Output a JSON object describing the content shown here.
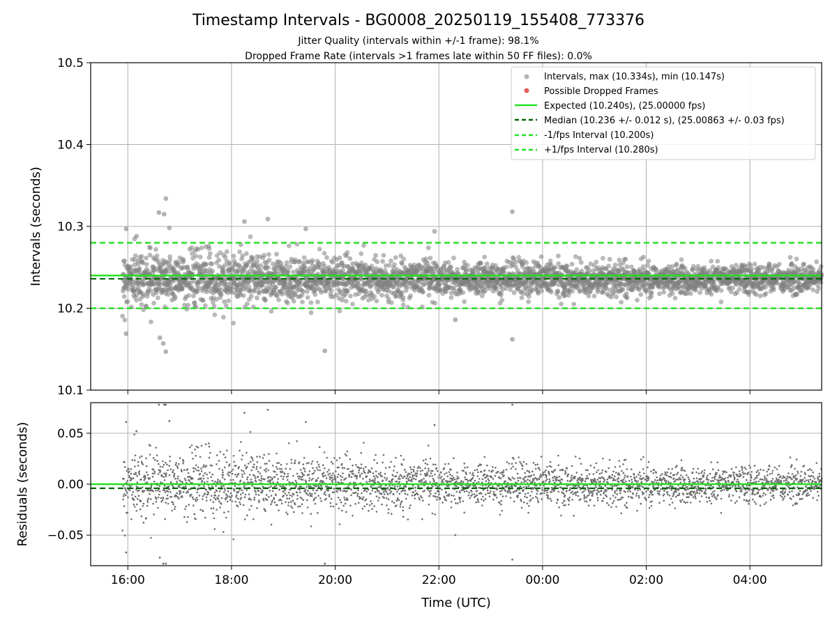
{
  "figure": {
    "title": "Timestamp Intervals - BG0008_20250119_155408_773376",
    "subtitle_1": "Jitter Quality (intervals within +/-1 frame): 98.1%",
    "subtitle_2": "Dropped Frame Rate (intervals >1 frames late within 50 FF files): 0.0%"
  },
  "colors": {
    "points": "#808080",
    "dropped": "#e8605a",
    "expected": "#22e022",
    "median": "#006400",
    "interval": "#22e022",
    "grid": "#b0b0b0"
  },
  "chart_data": [
    {
      "type": "scatter",
      "ylabel": "Intervals (seconds)",
      "xlim": [
        "15:17",
        "05:23"
      ],
      "ylim": [
        10.1,
        10.5
      ],
      "x_ticks": [
        "16:00",
        "18:00",
        "20:00",
        "22:00",
        "00:00",
        "02:00",
        "04:00"
      ],
      "y_ticks": [
        "10.1",
        "10.2",
        "10.3",
        "10.4",
        "10.5"
      ],
      "grid": true,
      "legend_position": "top-right",
      "legend": [
        "Intervals, max (10.334s), min (10.147s)",
        "Possible Dropped Frames",
        "Expected (10.240s), (25.00000 fps)",
        "Median (10.236 +/- 0.012 s), (25.00863 +/- 0.03 fps)",
        "-1/fps Interval (10.200s)",
        "+1/fps Interval (10.280s)"
      ],
      "expected": 10.24,
      "median": 10.236,
      "median_std": 0.012,
      "lower_interval": 10.2,
      "upper_interval": 10.28,
      "max": 10.334,
      "min": 10.147,
      "x_range": [
        "15:54",
        "05:23"
      ],
      "outliers": [
        {
          "x": "15:58",
          "y": 10.297
        },
        {
          "x": "15:58",
          "y": 10.169
        },
        {
          "x": "16:10",
          "y": 10.288
        },
        {
          "x": "16:36",
          "y": 10.317
        },
        {
          "x": "16:44",
          "y": 10.334
        },
        {
          "x": "16:42",
          "y": 10.315
        },
        {
          "x": "16:48",
          "y": 10.298
        },
        {
          "x": "16:37",
          "y": 10.164
        },
        {
          "x": "16:41",
          "y": 10.157
        },
        {
          "x": "16:44",
          "y": 10.147
        },
        {
          "x": "18:15",
          "y": 10.306
        },
        {
          "x": "18:42",
          "y": 10.309
        },
        {
          "x": "19:48",
          "y": 10.148
        },
        {
          "x": "19:26",
          "y": 10.297
        },
        {
          "x": "23:25",
          "y": 10.318
        },
        {
          "x": "23:25",
          "y": 10.162
        },
        {
          "x": "21:55",
          "y": 10.294
        },
        {
          "x": "22:19",
          "y": 10.186
        }
      ]
    },
    {
      "type": "scatter",
      "ylabel": "Residuals (seconds)",
      "xlabel": "Time (UTC)",
      "xlim": [
        "15:17",
        "05:23"
      ],
      "ylim": [
        -0.08,
        0.08
      ],
      "x_ticks": [
        "16:00",
        "18:00",
        "20:00",
        "22:00",
        "00:00",
        "02:00",
        "04:00"
      ],
      "y_ticks": [
        "−0.05",
        "0.00",
        "0.05"
      ],
      "grid": true,
      "zero_line": 0.0,
      "median_residual": -0.004
    }
  ]
}
